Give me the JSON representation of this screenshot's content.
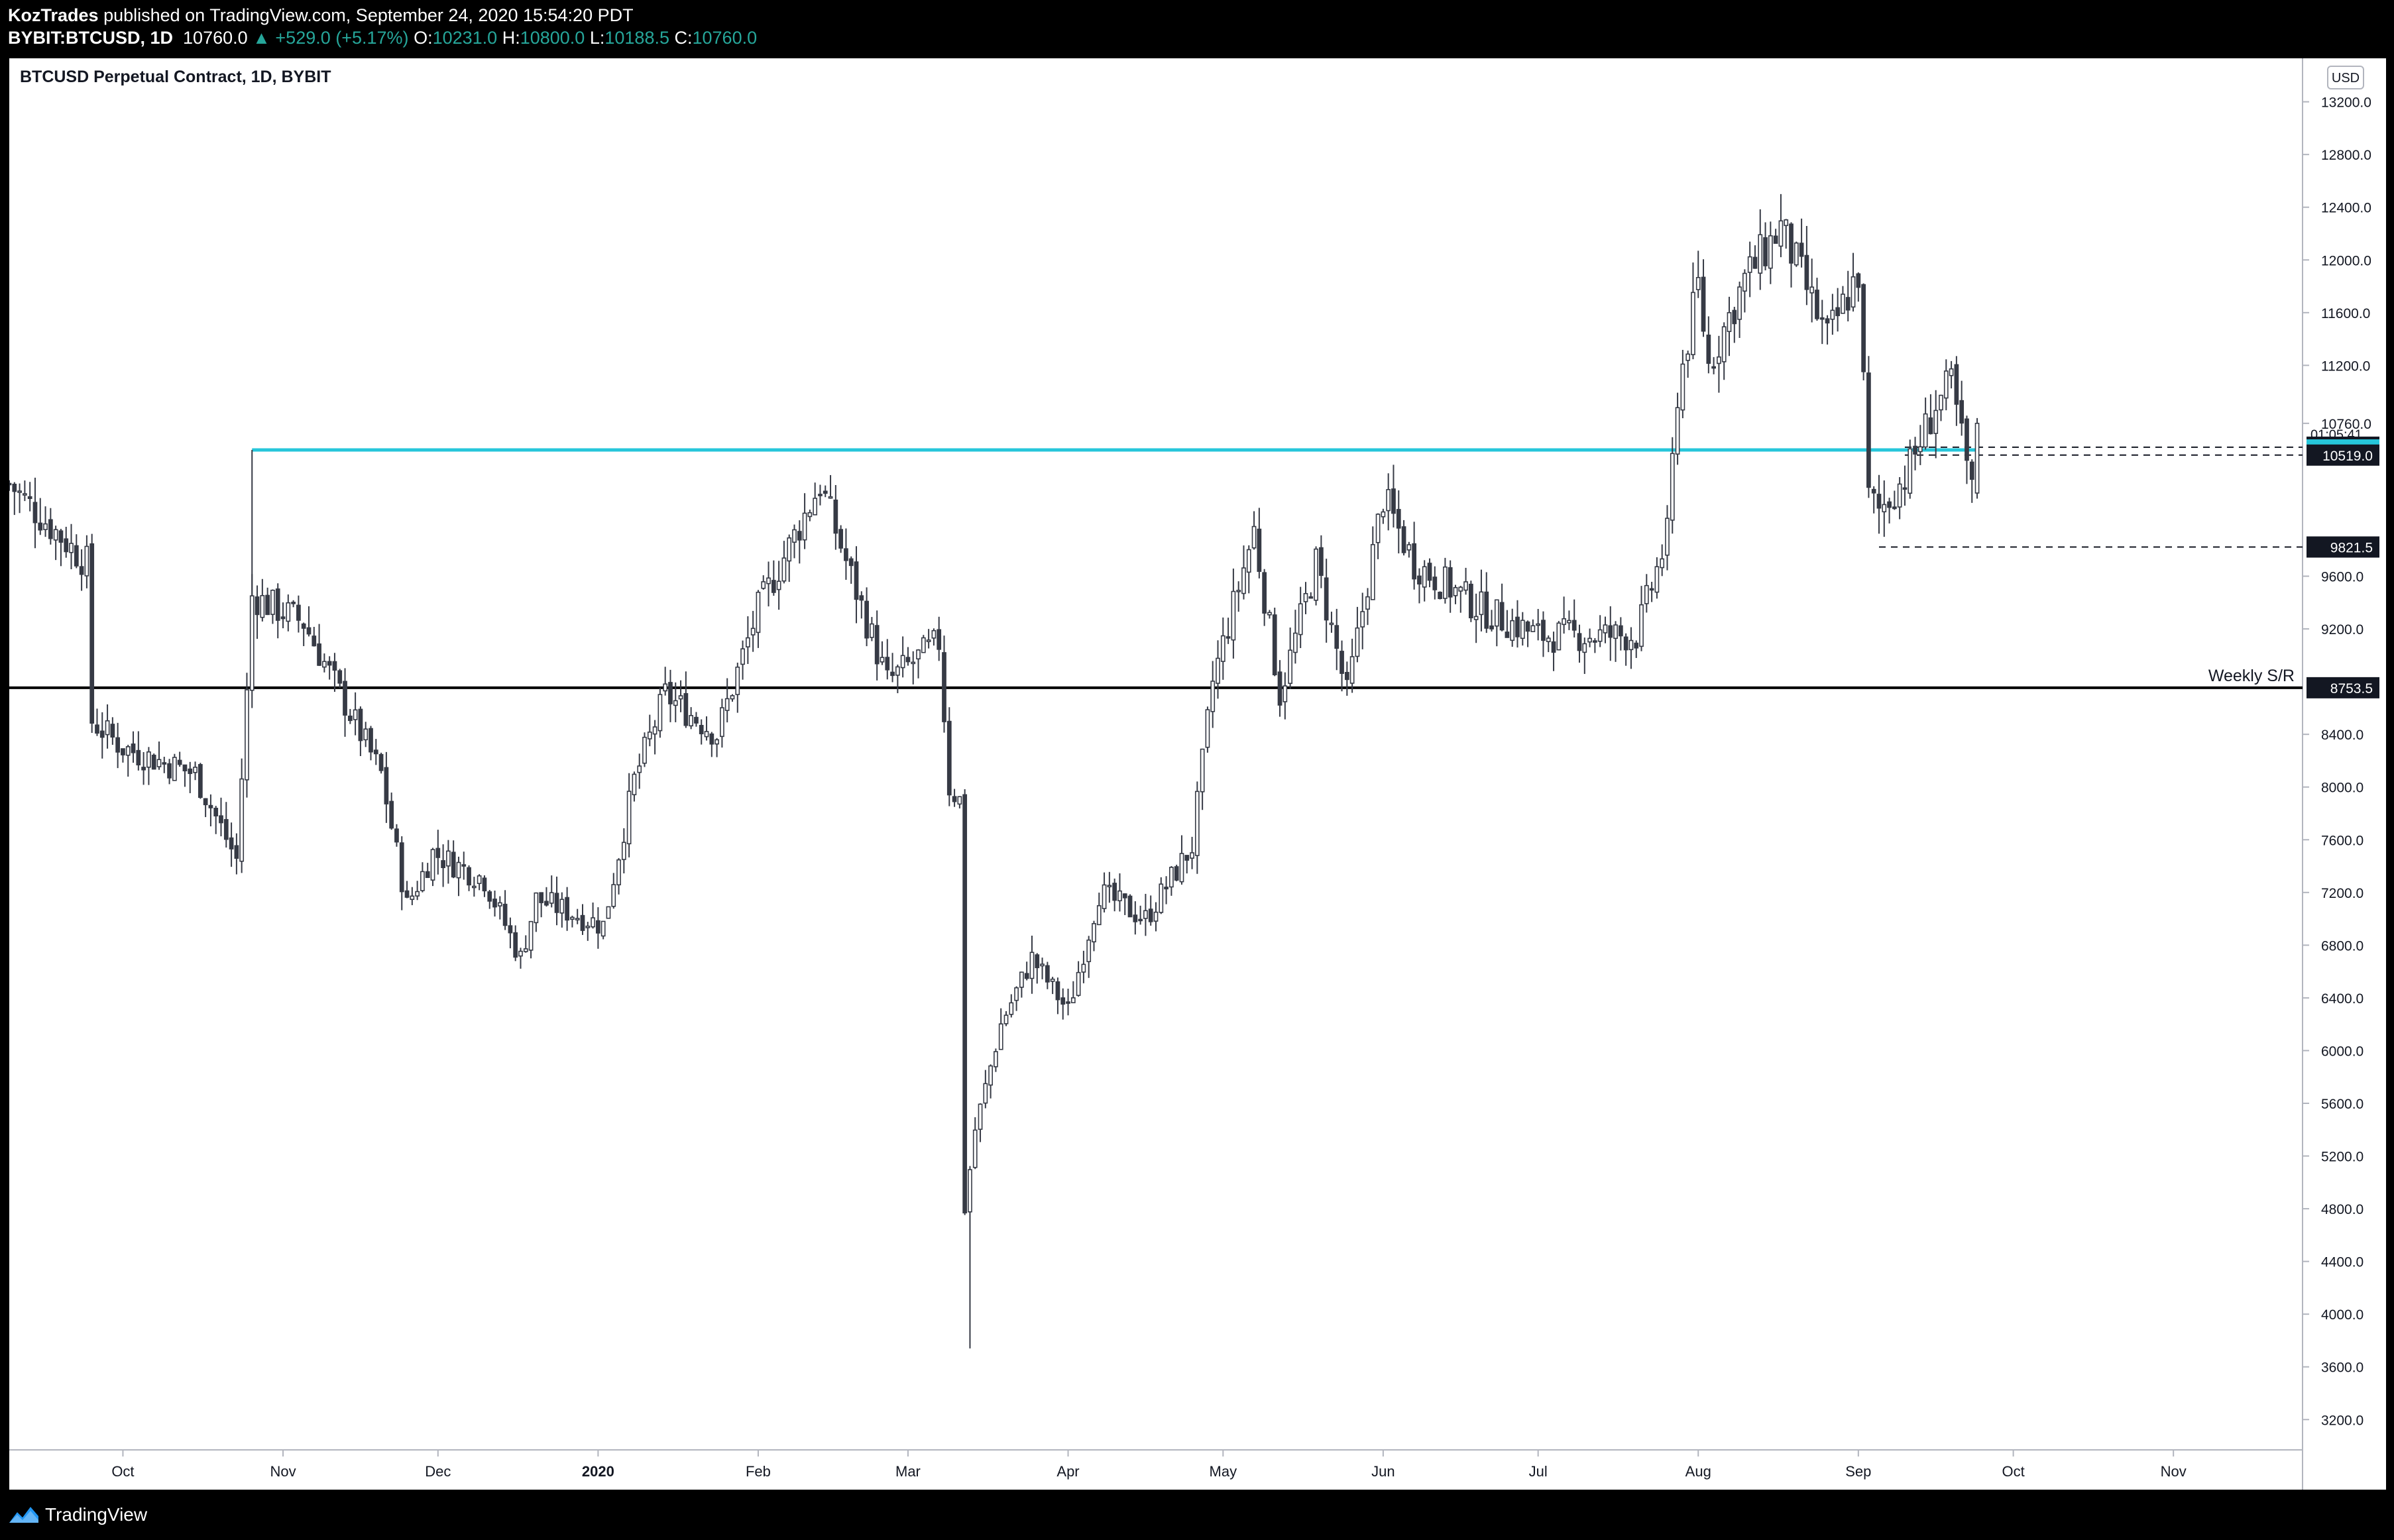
{
  "header": {
    "publisher": "KozTrades",
    "published_text": "published on TradingView.com, September 24, 2020 15:54:20 PDT",
    "symbol": "BYBIT:BTCUSD, 1D",
    "last": "10760.0",
    "change": "+529.0 (+5.17%)",
    "open_label": "O:",
    "open": "10231.0",
    "high_label": "H:",
    "high": "10800.0",
    "low_label": "L:",
    "low": "10188.5",
    "close_label": "C:",
    "close": "10760.0"
  },
  "chart_title": "BTCUSD Perpetual Contract, 1D, BYBIT",
  "footer": {
    "brand": "TradingView"
  },
  "colors": {
    "up": "#ffffff",
    "down": "#363a45",
    "wick": "#363a45",
    "accent": "#26c6da",
    "support": "#000000"
  },
  "chart_data": {
    "type": "candlestick",
    "currency": "USD",
    "y_ticks": [
      "13200.0",
      "12800.0",
      "12400.0",
      "12000.0",
      "11600.0",
      "11200.0",
      "10760.0",
      "9600.0",
      "9200.0",
      "8400.0",
      "8000.0",
      "7600.0",
      "7200.0",
      "6800.0",
      "6400.0",
      "6000.0",
      "5600.0",
      "5200.0",
      "4800.0",
      "4400.0",
      "4000.0",
      "3600.0",
      "3200.0"
    ],
    "x_ticks": [
      {
        "label": "Oct",
        "date": "2019-10-01",
        "bold": false
      },
      {
        "label": "Nov",
        "date": "2019-11-01",
        "bold": false
      },
      {
        "label": "Dec",
        "date": "2019-12-01",
        "bold": false
      },
      {
        "label": "2020",
        "date": "2020-01-01",
        "bold": true
      },
      {
        "label": "Feb",
        "date": "2020-02-01",
        "bold": false
      },
      {
        "label": "Mar",
        "date": "2020-03-01",
        "bold": false
      },
      {
        "label": "Apr",
        "date": "2020-04-01",
        "bold": false
      },
      {
        "label": "May",
        "date": "2020-05-01",
        "bold": false
      },
      {
        "label": "Jun",
        "date": "2020-06-01",
        "bold": false
      },
      {
        "label": "Jul",
        "date": "2020-07-01",
        "bold": false
      },
      {
        "label": "Aug",
        "date": "2020-08-01",
        "bold": false
      },
      {
        "label": "Sep",
        "date": "2020-09-01",
        "bold": false
      },
      {
        "label": "Oct",
        "date": "2020-10-01",
        "bold": false
      },
      {
        "label": "Nov",
        "date": "2020-11-01",
        "bold": false
      }
    ],
    "x_range": [
      "2019-09-09",
      "2020-11-26"
    ],
    "y_range": [
      2970,
      13530
    ],
    "price_tags": [
      {
        "value": 10579.0,
        "label": "10579.0",
        "style": "dark"
      },
      {
        "value": 10558.0,
        "label": "10558.0",
        "style": "accent"
      },
      {
        "value": 10519.0,
        "label": "10519.0",
        "style": "dark"
      },
      {
        "value": 9821.5,
        "label": "9821.5",
        "style": "dark"
      },
      {
        "value": 8753.5,
        "label": "8753.5",
        "style": "dark"
      }
    ],
    "countdown": {
      "label": "01:05:41",
      "value": 10600
    },
    "lines": [
      {
        "name": "resistance",
        "value": 10558,
        "from": "2019-10-26",
        "to": "2020-09-24",
        "color": "#26c6da"
      },
      {
        "name": "weekly-sr",
        "value": 8753.5,
        "from": "2019-09-09",
        "to": "2020-11-26",
        "color": "#000000",
        "label": "Weekly S/R"
      },
      {
        "name": "high-dash",
        "value": 10579,
        "from": "2020-09-10",
        "to": "2020-11-26",
        "dashed": true
      },
      {
        "name": "low-dash",
        "value": 10519,
        "from": "2020-09-10",
        "to": "2020-11-26",
        "dashed": true
      },
      {
        "name": "sep-low-dash",
        "value": 9821.5,
        "from": "2020-09-05",
        "to": "2020-11-26",
        "dashed": true
      }
    ],
    "key_points": [
      {
        "date": "2019-09-09",
        "close": 10300
      },
      {
        "date": "2019-09-24",
        "close": 9700
      },
      {
        "date": "2019-09-25",
        "close": 8500
      },
      {
        "date": "2019-10-01",
        "close": 8300
      },
      {
        "date": "2019-10-15",
        "close": 8100
      },
      {
        "date": "2019-10-23",
        "close": 7450
      },
      {
        "date": "2019-10-25",
        "close": 8700
      },
      {
        "date": "2019-10-26",
        "close": 9450
      },
      {
        "date": "2019-11-05",
        "close": 9250
      },
      {
        "date": "2019-11-20",
        "close": 8100
      },
      {
        "date": "2019-11-25",
        "close": 7100
      },
      {
        "date": "2019-11-30",
        "close": 7500
      },
      {
        "date": "2019-12-10",
        "close": 7300
      },
      {
        "date": "2019-12-17",
        "close": 6700
      },
      {
        "date": "2019-12-20",
        "close": 7150
      },
      {
        "date": "2020-01-02",
        "close": 6950
      },
      {
        "date": "2020-01-08",
        "close": 8050
      },
      {
        "date": "2020-01-14",
        "close": 8700
      },
      {
        "date": "2020-01-24",
        "close": 8400
      },
      {
        "date": "2020-02-01",
        "close": 9350
      },
      {
        "date": "2020-02-13",
        "close": 10300
      },
      {
        "date": "2020-02-19",
        "close": 9600
      },
      {
        "date": "2020-02-26",
        "close": 8800
      },
      {
        "date": "2020-03-07",
        "close": 9100
      },
      {
        "date": "2020-03-09",
        "close": 8000
      },
      {
        "date": "2020-03-11",
        "close": 7900
      },
      {
        "date": "2020-03-12",
        "close": 4800
      },
      {
        "date": "2020-03-14",
        "close": 5400
      },
      {
        "date": "2020-03-19",
        "close": 6200
      },
      {
        "date": "2020-03-25",
        "close": 6700
      },
      {
        "date": "2020-04-01",
        "close": 6300
      },
      {
        "date": "2020-04-07",
        "close": 7200
      },
      {
        "date": "2020-04-16",
        "close": 7000
      },
      {
        "date": "2020-04-25",
        "close": 7550
      },
      {
        "date": "2020-04-29",
        "close": 8800
      },
      {
        "date": "2020-05-07",
        "close": 9950
      },
      {
        "date": "2020-05-12",
        "close": 8700
      },
      {
        "date": "2020-05-19",
        "close": 9700
      },
      {
        "date": "2020-05-25",
        "close": 8700
      },
      {
        "date": "2020-06-01",
        "close": 10200
      },
      {
        "date": "2020-06-07",
        "close": 9700
      },
      {
        "date": "2020-06-20",
        "close": 9350
      },
      {
        "date": "2020-07-01",
        "close": 9150
      },
      {
        "date": "2020-07-20",
        "close": 9150
      },
      {
        "date": "2020-07-26",
        "close": 9900
      },
      {
        "date": "2020-07-28",
        "close": 11000
      },
      {
        "date": "2020-08-01",
        "close": 11800
      },
      {
        "date": "2020-08-03",
        "close": 11200
      },
      {
        "date": "2020-08-10",
        "close": 11850
      },
      {
        "date": "2020-08-17",
        "close": 12250
      },
      {
        "date": "2020-08-26",
        "close": 11400
      },
      {
        "date": "2020-09-01",
        "close": 11900
      },
      {
        "date": "2020-09-03",
        "close": 10200
      },
      {
        "date": "2020-09-05",
        "close": 10100
      },
      {
        "date": "2020-09-10",
        "close": 10350
      },
      {
        "date": "2020-09-16",
        "close": 10900
      },
      {
        "date": "2020-09-19",
        "close": 11050
      },
      {
        "date": "2020-09-22",
        "close": 10450
      },
      {
        "date": "2020-09-23",
        "close": 10231
      },
      {
        "date": "2020-09-24",
        "close": 10760
      }
    ],
    "final_candle": {
      "date": "2020-09-24",
      "open": 10231.0,
      "high": 10800.0,
      "low": 10188.5,
      "close": 10760.0
    },
    "annotation": "Weekly S/R"
  }
}
